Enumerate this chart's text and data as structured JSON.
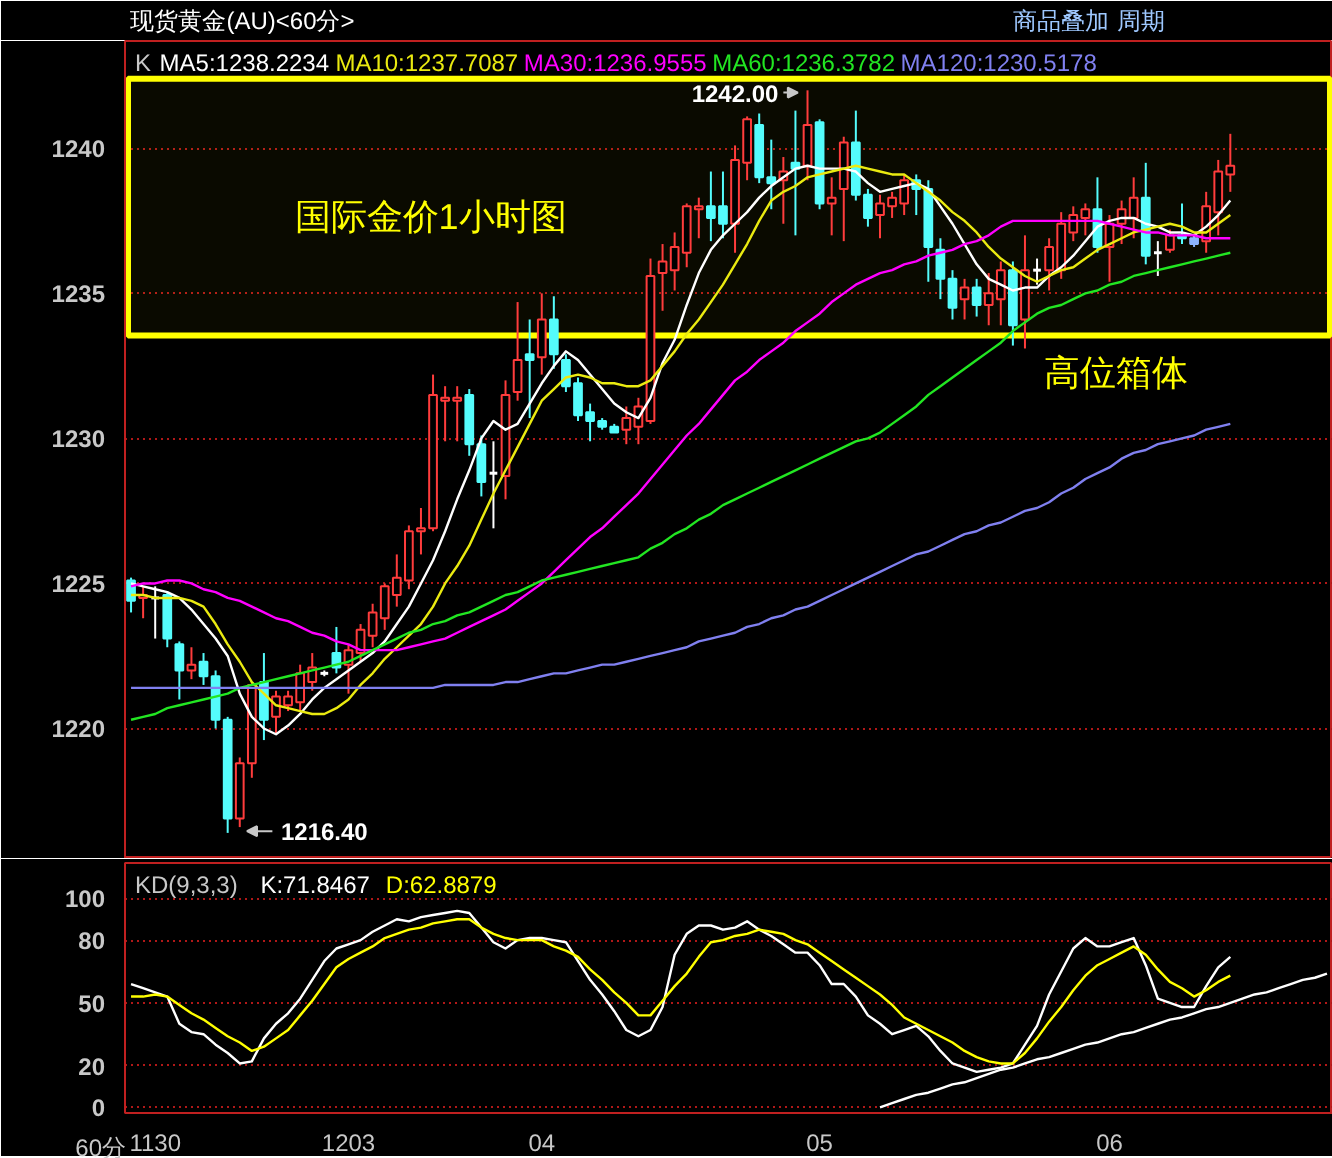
{
  "chart_data": [
    {
      "type": "candlestick",
      "title": "现货黄金(AU)<60分>",
      "legend_title": "K",
      "legend": "top left",
      "grid": "y",
      "tick_labels": "y",
      "ylim": [
        1215.5,
        1243.7
      ],
      "yticks": [
        1220,
        1225,
        1230,
        1235,
        1240
      ],
      "categories": [
        null,
        null,
        "1130",
        null,
        null,
        null,
        null,
        null,
        null,
        null,
        null,
        null,
        null,
        null,
        null,
        null,
        null,
        null,
        "1203",
        null,
        null,
        null,
        null,
        null,
        null,
        null,
        null,
        null,
        null,
        null,
        null,
        null,
        null,
        null,
        "04",
        null,
        null,
        null,
        null,
        null,
        null,
        null,
        null,
        null,
        null,
        null,
        null,
        null,
        null,
        null,
        null,
        null,
        null,
        null,
        null,
        null,
        null,
        "05",
        null,
        null,
        null,
        null,
        null,
        null,
        null,
        null,
        null,
        null,
        null,
        null,
        null,
        null,
        null,
        null,
        null,
        null,
        null,
        null,
        null,
        null,
        null,
        "06",
        null,
        null,
        null,
        null,
        null,
        null,
        null,
        null,
        null,
        null,
        null,
        null,
        null,
        null,
        null,
        null,
        null,
        null
      ],
      "colors": [
        "#54fcfc",
        "#ff3c3c",
        "#ffffff",
        "#54fcfc",
        "#54fcfc",
        "#ff3c3c",
        "#54fcfc",
        "#54fcfc",
        "#54fcfc",
        "#ff3c3c",
        "#ff3c3c",
        "#54fcfc",
        "#ff3c3c",
        "#ff3c3c",
        "#ff3c3c",
        "#ff3c3c",
        "#ffffff",
        "#54fcfc",
        "#ff3c3c",
        "#ff3c3c",
        "#ff3c3c",
        "#ff3c3c",
        "#ff3c3c",
        "#ff3c3c",
        "#ff3c3c",
        "#ff3c3c",
        "#ff3c3c",
        "#ff3c3c",
        "#54fcfc",
        "#54fcfc",
        "#ffffff",
        "#ff3c3c",
        "#ff3c3c",
        "#54fcfc",
        "#ff3c3c",
        "#54fcfc",
        "#54fcfc",
        "#54fcfc",
        "#54fcfc",
        "#54fcfc",
        "#54fcfc",
        "#ff3c3c",
        "#ff3c3c",
        "#ff3c3c",
        "#ff3c3c",
        "#ff3c3c",
        "#ff3c3c",
        "#ff3c3c",
        "#54fcfc",
        "#54fcfc",
        "#ff3c3c",
        "#ff3c3c",
        "#54fcfc",
        "#54fcfc",
        "#ff3c3c",
        "#54fcfc",
        "#ff3c3c",
        "#54fcfc",
        "#ff3c3c",
        "#ff3c3c",
        "#54fcfc",
        "#54fcfc",
        "#ff3c3c",
        "#ff3c3c",
        "#ff3c3c",
        "#54fcfc",
        "#54fcfc",
        "#54fcfc",
        "#54fcfc",
        "#ff3c3c",
        "#54fcfc",
        "#ff3c3c",
        "#ff3c3c",
        "#54fcfc",
        "#ff3c3c",
        "#ffffff",
        "#ff3c3c",
        "#ff3c3c",
        "#ff3c3c",
        "#ff3c3c",
        "#54fcfc",
        "#ff3c3c",
        "#ff3c3c",
        "#ff3c3c",
        "#54fcfc",
        "#ffffff",
        "#ff3c3c",
        "#54fcfc",
        "#8cb4ff",
        "#ff3c3c",
        "#ff3c3c",
        "#ff3c3c",
        null,
        null,
        null,
        null,
        null,
        null,
        null,
        null
      ],
      "ohlc": [
        [
          1225.1,
          1225.2,
          1224.0,
          1224.4
        ],
        [
          1224.5,
          1224.9,
          1223.8,
          1224.6
        ],
        [
          1224.5,
          1224.9,
          1223.1,
          1224.5
        ],
        [
          1224.6,
          1224.7,
          1222.8,
          1223.1
        ],
        [
          1222.9,
          1223.0,
          1221.0,
          1222.0
        ],
        [
          1222.0,
          1222.8,
          1221.7,
          1222.2
        ],
        [
          1222.3,
          1222.6,
          1221.5,
          1221.8
        ],
        [
          1221.8,
          1222.0,
          1220.0,
          1220.3
        ],
        [
          1220.3,
          1220.4,
          1216.4,
          1216.9
        ],
        [
          1216.9,
          1219.0,
          1216.6,
          1218.8
        ],
        [
          1218.8,
          1221.6,
          1218.3,
          1221.5
        ],
        [
          1221.6,
          1222.6,
          1219.6,
          1220.3
        ],
        [
          1220.4,
          1221.3,
          1219.8,
          1221.1
        ],
        [
          1220.8,
          1221.3,
          1220.6,
          1221.1
        ],
        [
          1220.9,
          1222.2,
          1220.6,
          1221.9
        ],
        [
          1221.6,
          1222.6,
          1221.3,
          1222.1
        ],
        [
          1221.9,
          1222.0,
          1221.8,
          1221.9
        ],
        [
          1222.6,
          1223.5,
          1221.9,
          1222.1
        ],
        [
          1222.2,
          1222.9,
          1221.2,
          1222.7
        ],
        [
          1222.6,
          1223.6,
          1222.3,
          1223.4
        ],
        [
          1223.2,
          1224.3,
          1222.8,
          1224.0
        ],
        [
          1223.8,
          1225.0,
          1223.4,
          1224.9
        ],
        [
          1224.6,
          1226.0,
          1224.2,
          1225.2
        ],
        [
          1225.1,
          1227.0,
          1224.8,
          1226.8
        ],
        [
          1226.8,
          1227.6,
          1226.0,
          1226.9
        ],
        [
          1226.9,
          1232.2,
          1226.8,
          1231.5
        ],
        [
          1231.3,
          1231.8,
          1229.9,
          1231.4
        ],
        [
          1231.3,
          1231.8,
          1229.9,
          1231.4
        ],
        [
          1231.5,
          1231.7,
          1229.4,
          1229.8
        ],
        [
          1229.8,
          1230.1,
          1228.0,
          1228.5
        ],
        [
          1228.8,
          1229.9,
          1226.9,
          1228.8
        ],
        [
          1228.7,
          1232.0,
          1227.9,
          1231.5
        ],
        [
          1231.6,
          1234.7,
          1231.3,
          1232.7
        ],
        [
          1232.9,
          1234.1,
          1230.7,
          1232.7
        ],
        [
          1232.8,
          1235.0,
          1232.2,
          1234.1
        ],
        [
          1234.1,
          1234.9,
          1232.4,
          1232.9
        ],
        [
          1232.7,
          1232.9,
          1231.6,
          1231.8
        ],
        [
          1231.9,
          1232.1,
          1230.6,
          1230.8
        ],
        [
          1230.9,
          1231.2,
          1229.9,
          1230.6
        ],
        [
          1230.6,
          1230.7,
          1230.3,
          1230.4
        ],
        [
          1230.4,
          1230.5,
          1230.2,
          1230.2
        ],
        [
          1230.3,
          1231.1,
          1229.8,
          1230.7
        ],
        [
          1230.4,
          1231.4,
          1229.8,
          1231.1
        ],
        [
          1230.6,
          1236.2,
          1230.5,
          1235.6
        ],
        [
          1235.7,
          1236.7,
          1234.4,
          1236.1
        ],
        [
          1235.8,
          1237.1,
          1235.1,
          1236.6
        ],
        [
          1236.4,
          1238.1,
          1235.9,
          1238.0
        ],
        [
          1237.9,
          1238.3,
          1236.9,
          1238.0
        ],
        [
          1238.0,
          1239.2,
          1236.8,
          1237.6
        ],
        [
          1238.0,
          1239.2,
          1236.9,
          1237.4
        ],
        [
          1237.4,
          1240.1,
          1236.4,
          1239.6
        ],
        [
          1239.5,
          1241.1,
          1238.9,
          1241.0
        ],
        [
          1240.8,
          1241.2,
          1238.8,
          1239.0
        ],
        [
          1239.0,
          1240.3,
          1237.9,
          1238.8
        ],
        [
          1238.9,
          1239.7,
          1237.4,
          1239.2
        ],
        [
          1239.5,
          1241.3,
          1237.0,
          1239.3
        ],
        [
          1239.4,
          1242.0,
          1238.9,
          1240.8
        ],
        [
          1240.9,
          1241.0,
          1237.9,
          1238.1
        ],
        [
          1238.1,
          1239.0,
          1237.0,
          1238.3
        ],
        [
          1238.6,
          1240.4,
          1236.8,
          1240.2
        ],
        [
          1240.2,
          1241.3,
          1238.2,
          1238.4
        ],
        [
          1238.4,
          1238.6,
          1237.3,
          1237.6
        ],
        [
          1237.7,
          1238.4,
          1236.9,
          1238.1
        ],
        [
          1238.0,
          1238.5,
          1237.6,
          1238.3
        ],
        [
          1238.1,
          1239.1,
          1237.7,
          1238.9
        ],
        [
          1238.9,
          1239.1,
          1237.7,
          1238.6
        ],
        [
          1238.6,
          1238.9,
          1235.4,
          1236.6
        ],
        [
          1236.5,
          1236.9,
          1234.8,
          1235.5
        ],
        [
          1235.5,
          1235.8,
          1234.1,
          1234.5
        ],
        [
          1234.8,
          1235.5,
          1234.1,
          1235.2
        ],
        [
          1235.2,
          1235.5,
          1234.2,
          1234.6
        ],
        [
          1234.6,
          1235.7,
          1233.9,
          1235.0
        ],
        [
          1234.8,
          1236.1,
          1233.9,
          1235.8
        ],
        [
          1235.8,
          1236.1,
          1233.2,
          1233.9
        ],
        [
          1234.1,
          1237.0,
          1233.1,
          1235.8
        ],
        [
          1235.8,
          1236.2,
          1235.3,
          1235.8
        ],
        [
          1235.8,
          1236.9,
          1235.1,
          1236.6
        ],
        [
          1235.8,
          1237.8,
          1235.5,
          1237.4
        ],
        [
          1237.1,
          1238.0,
          1236.8,
          1237.7
        ],
        [
          1237.6,
          1238.1,
          1237.0,
          1237.9
        ],
        [
          1237.9,
          1239.0,
          1236.4,
          1236.6
        ],
        [
          1236.6,
          1237.7,
          1235.4,
          1237.4
        ],
        [
          1237.4,
          1238.2,
          1236.7,
          1237.9
        ],
        [
          1237.6,
          1239.0,
          1236.9,
          1238.3
        ],
        [
          1238.3,
          1239.5,
          1236.0,
          1236.3
        ],
        [
          1236.4,
          1236.8,
          1235.6,
          1236.4
        ],
        [
          1236.5,
          1237.2,
          1236.4,
          1237.0
        ],
        [
          1237.0,
          1238.1,
          1236.7,
          1236.9
        ],
        [
          1236.9,
          1237.0,
          1236.6,
          1236.7
        ],
        [
          1236.8,
          1238.5,
          1236.4,
          1238.0
        ],
        [
          1237.8,
          1239.6,
          1237.0,
          1239.2
        ],
        [
          1239.1,
          1240.5,
          1238.5,
          1239.4
        ],
        null,
        null,
        null,
        null,
        null,
        null,
        null,
        null
      ],
      "series": [
        {
          "type": "line",
          "name": "MA5:1238.2234",
          "color": "#ffffff",
          "values": [
            1225.0,
            1224.9,
            1224.8,
            1224.7,
            1224.5,
            1224.1,
            1223.6,
            1223.1,
            1222.5,
            1221.2,
            1220.4,
            1220.0,
            1219.8,
            1220.1,
            1220.5,
            1221.0,
            1221.4,
            1221.7,
            1222.0,
            1222.3,
            1222.6,
            1223.0,
            1223.6,
            1224.2,
            1225.0,
            1225.8,
            1226.8,
            1227.9,
            1228.9,
            1230.0,
            1230.6,
            1230.3,
            1230.5,
            1231.2,
            1231.9,
            1232.5,
            1233.0,
            1232.7,
            1232.2,
            1231.7,
            1231.2,
            1230.9,
            1230.7,
            1231.4,
            1232.6,
            1233.4,
            1234.6,
            1235.7,
            1236.5,
            1237.0,
            1237.4,
            1237.8,
            1238.3,
            1238.7,
            1239.0,
            1239.3,
            1239.4,
            1239.3,
            1239.3,
            1239.3,
            1239.2,
            1238.8,
            1238.5,
            1238.6,
            1238.7,
            1238.8,
            1238.6,
            1238.0,
            1237.4,
            1236.7,
            1236.0,
            1235.5,
            1235.3,
            1235.1,
            1235.2,
            1235.2,
            1235.6,
            1235.9,
            1236.3,
            1236.8,
            1237.3,
            1237.5,
            1237.6,
            1237.6,
            1237.4,
            1237.3,
            1237.1,
            1237.1,
            1237.0,
            1237.3,
            1237.7,
            1238.2,
            null,
            null,
            null,
            null,
            null,
            null,
            null,
            null
          ]
        },
        {
          "type": "line",
          "name": "MA10:1237.7087",
          "color": "#eaea10",
          "values": [
            1224.6,
            1224.6,
            1224.5,
            1224.5,
            1224.5,
            1224.4,
            1224.2,
            1223.6,
            1222.9,
            1222.3,
            1221.6,
            1221.2,
            1220.8,
            1220.7,
            1220.6,
            1220.5,
            1220.5,
            1220.7,
            1221.0,
            1221.5,
            1221.9,
            1222.4,
            1222.8,
            1223.2,
            1223.6,
            1224.2,
            1225.0,
            1225.6,
            1226.3,
            1227.2,
            1228.1,
            1228.9,
            1229.7,
            1230.5,
            1231.3,
            1231.7,
            1232.1,
            1232.2,
            1232.1,
            1231.9,
            1231.9,
            1231.8,
            1231.8,
            1232.0,
            1232.5,
            1233.0,
            1233.6,
            1234.1,
            1234.7,
            1235.3,
            1236.0,
            1236.7,
            1237.5,
            1238.2,
            1238.5,
            1238.7,
            1239.0,
            1239.1,
            1239.2,
            1239.3,
            1239.4,
            1239.3,
            1239.2,
            1239.1,
            1239.1,
            1238.8,
            1238.5,
            1238.2,
            1237.8,
            1237.5,
            1237.1,
            1236.6,
            1236.2,
            1235.9,
            1235.6,
            1235.4,
            1235.6,
            1235.8,
            1235.9,
            1236.2,
            1236.5,
            1236.7,
            1236.9,
            1237.1,
            1237.2,
            1237.3,
            1237.4,
            1237.3,
            1237.1,
            1237.1,
            1237.4,
            1237.7,
            null,
            null,
            null,
            null,
            null,
            null,
            null,
            null
          ]
        },
        {
          "type": "line",
          "name": "MA30:1236.9555",
          "color": "#ff00ff",
          "values": [
            1224.9,
            1225.0,
            1225.0,
            1225.1,
            1225.1,
            1225.0,
            1224.8,
            1224.7,
            1224.5,
            1224.4,
            1224.2,
            1224.0,
            1223.8,
            1223.7,
            1223.5,
            1223.3,
            1223.2,
            1223.0,
            1222.9,
            1222.7,
            1222.7,
            1222.7,
            1222.7,
            1222.8,
            1222.9,
            1223.0,
            1223.1,
            1223.3,
            1223.5,
            1223.7,
            1223.9,
            1224.1,
            1224.4,
            1224.7,
            1225.0,
            1225.4,
            1225.8,
            1226.2,
            1226.6,
            1226.9,
            1227.3,
            1227.7,
            1228.1,
            1228.6,
            1229.1,
            1229.6,
            1230.1,
            1230.5,
            1231.0,
            1231.5,
            1232.0,
            1232.3,
            1232.7,
            1233.0,
            1233.3,
            1233.7,
            1234.0,
            1234.3,
            1234.7,
            1235.0,
            1235.3,
            1235.5,
            1235.7,
            1235.8,
            1236.0,
            1236.1,
            1236.3,
            1236.4,
            1236.5,
            1236.7,
            1236.8,
            1237.0,
            1237.3,
            1237.5,
            1237.5,
            1237.5,
            1237.5,
            1237.5,
            1237.5,
            1237.5,
            1237.5,
            1237.4,
            1237.3,
            1237.2,
            1237.1,
            1237.1,
            1237.0,
            1237.0,
            1237.0,
            1236.9,
            1236.9,
            1236.9,
            null,
            null,
            null,
            null,
            null,
            null,
            null,
            null
          ]
        },
        {
          "type": "line",
          "name": "MA60:1236.3782",
          "color": "#22e622",
          "values": [
            1220.3,
            1220.4,
            1220.5,
            1220.7,
            1220.8,
            1220.9,
            1221.0,
            1221.1,
            1221.2,
            1221.4,
            1221.5,
            1221.6,
            1221.7,
            1221.8,
            1221.9,
            1222.0,
            1222.1,
            1222.2,
            1222.3,
            1222.5,
            1222.7,
            1222.9,
            1223.1,
            1223.3,
            1223.4,
            1223.6,
            1223.7,
            1223.9,
            1224.0,
            1224.2,
            1224.4,
            1224.6,
            1224.7,
            1224.9,
            1225.1,
            1225.2,
            1225.3,
            1225.4,
            1225.5,
            1225.6,
            1225.7,
            1225.8,
            1225.9,
            1226.2,
            1226.4,
            1226.7,
            1226.9,
            1227.2,
            1227.4,
            1227.7,
            1227.9,
            1228.1,
            1228.3,
            1228.5,
            1228.7,
            1228.9,
            1229.1,
            1229.3,
            1229.5,
            1229.7,
            1229.9,
            1230.0,
            1230.2,
            1230.5,
            1230.8,
            1231.1,
            1231.5,
            1231.8,
            1232.1,
            1232.4,
            1232.7,
            1233.0,
            1233.3,
            1233.7,
            1234.0,
            1234.3,
            1234.5,
            1234.6,
            1234.8,
            1235.0,
            1235.1,
            1235.3,
            1235.4,
            1235.6,
            1235.7,
            1235.8,
            1235.9,
            1236.0,
            1236.1,
            1236.2,
            1236.3,
            1236.4,
            null,
            null,
            null,
            null,
            null,
            null,
            null,
            null
          ]
        },
        {
          "type": "line",
          "name": "MA120:1230.5178",
          "color": "#8080f0",
          "values": [
            1221.4,
            1221.4,
            1221.4,
            1221.4,
            1221.4,
            1221.4,
            1221.4,
            1221.4,
            1221.4,
            1221.4,
            1221.4,
            1221.4,
            1221.4,
            1221.4,
            1221.4,
            1221.4,
            1221.4,
            1221.4,
            1221.4,
            1221.4,
            1221.4,
            1221.4,
            1221.4,
            1221.4,
            1221.4,
            1221.4,
            1221.5,
            1221.5,
            1221.5,
            1221.5,
            1221.5,
            1221.6,
            1221.6,
            1221.7,
            1221.8,
            1221.9,
            1221.9,
            1222.0,
            1222.1,
            1222.2,
            1222.2,
            1222.3,
            1222.4,
            1222.5,
            1222.6,
            1222.7,
            1222.8,
            1223.0,
            1223.1,
            1223.2,
            1223.3,
            1223.5,
            1223.6,
            1223.8,
            1223.9,
            1224.1,
            1224.2,
            1224.4,
            1224.6,
            1224.8,
            1225.0,
            1225.2,
            1225.4,
            1225.6,
            1225.8,
            1226.0,
            1226.1,
            1226.3,
            1226.5,
            1226.7,
            1226.8,
            1227.0,
            1227.1,
            1227.3,
            1227.5,
            1227.6,
            1227.8,
            1228.1,
            1228.3,
            1228.6,
            1228.8,
            1229.0,
            1229.3,
            1229.5,
            1229.6,
            1229.8,
            1229.9,
            1230.0,
            1230.1,
            1230.3,
            1230.4,
            1230.5,
            null,
            null,
            null,
            null,
            null,
            null,
            null,
            null
          ]
        }
      ],
      "bands": [
        {
          "axis": "y",
          "from": 1233.55,
          "to": 1242.4,
          "label": "高位箱体",
          "color": "#ffff00"
        }
      ],
      "annotations": [
        "国际金价1小时图",
        "商品叠加",
        "周期",
        "1242.00",
        "1216.40"
      ]
    },
    {
      "type": "line",
      "legend_title": "KD(9,3,3)",
      "legend": "top left",
      "grid": "y",
      "xlabel": "60分",
      "ylim": [
        -2.7,
        116.9
      ],
      "yticks": [
        0,
        20,
        50,
        80,
        100
      ],
      "categories": [
        null,
        null,
        "1130",
        null,
        null,
        null,
        null,
        null,
        null,
        null,
        null,
        null,
        null,
        null,
        null,
        null,
        null,
        null,
        "1203",
        null,
        null,
        null,
        null,
        null,
        null,
        null,
        null,
        null,
        null,
        null,
        null,
        null,
        null,
        null,
        "04",
        null,
        null,
        null,
        null,
        null,
        null,
        null,
        null,
        null,
        null,
        null,
        null,
        null,
        null,
        null,
        null,
        null,
        null,
        null,
        null,
        null,
        null,
        "05",
        null,
        null,
        null,
        null,
        null,
        null,
        null,
        null,
        null,
        null,
        null,
        null,
        null,
        null,
        null,
        null,
        null,
        null,
        null,
        null,
        null,
        null,
        null,
        "06",
        null,
        null,
        null,
        null,
        null,
        null,
        null,
        null,
        null,
        null,
        null,
        null,
        null,
        null,
        null,
        null,
        null,
        null
      ],
      "series": [
        {
          "name": "K:71.8467",
          "color": "#ffffff",
          "values": [
            59,
            57,
            55,
            53,
            40,
            36,
            35,
            30,
            26,
            21,
            22,
            33,
            40,
            45,
            52,
            61,
            70,
            76,
            78,
            80,
            84,
            87,
            90,
            89,
            91,
            92,
            93,
            94,
            93,
            86,
            79,
            76,
            80,
            81,
            81,
            80,
            79,
            70,
            61,
            54,
            46,
            37,
            34,
            37,
            48,
            73,
            83,
            87,
            87,
            85,
            86,
            89,
            85,
            82,
            78,
            74,
            74,
            68,
            59,
            59,
            53,
            44,
            40,
            35,
            37,
            39,
            34,
            27,
            21,
            19,
            17,
            18,
            19,
            21,
            30,
            39,
            54,
            65,
            76,
            81,
            77,
            77,
            79,
            81,
            68,
            52,
            50,
            48,
            48,
            58,
            67,
            72,
            null,
            null,
            null,
            null,
            null,
            null,
            null,
            null
          ]
        },
        {
          "name": "D:62.8879",
          "color": "#ffff00",
          "values": [
            53,
            53,
            54,
            53,
            49,
            45,
            42,
            38,
            34,
            31,
            27,
            29,
            33,
            37,
            44,
            51,
            59,
            67,
            71,
            74,
            77,
            81,
            83,
            85,
            86,
            88,
            89,
            90,
            90,
            86,
            83,
            81,
            80,
            80,
            80,
            77,
            75,
            72,
            66,
            61,
            55,
            50,
            44,
            44,
            51,
            58,
            64,
            72,
            79,
            80,
            82,
            83,
            85,
            84,
            83,
            80,
            78,
            74,
            70,
            66,
            62,
            58,
            54,
            49,
            43,
            40,
            37,
            34,
            31,
            27,
            24,
            22,
            21,
            21,
            26,
            33,
            41,
            48,
            56,
            63,
            68,
            71,
            74,
            77,
            73,
            66,
            60,
            57,
            53,
            56,
            60,
            63,
            null,
            null,
            null,
            null,
            null,
            null,
            null,
            null
          ]
        },
        {
          "color": "#ffffff",
          "values": [
            null,
            null,
            null,
            null,
            null,
            null,
            null,
            null,
            null,
            null,
            null,
            null,
            null,
            null,
            null,
            null,
            null,
            null,
            null,
            null,
            null,
            null,
            null,
            null,
            null,
            null,
            null,
            null,
            null,
            null,
            null,
            null,
            null,
            null,
            null,
            null,
            null,
            null,
            null,
            null,
            null,
            null,
            null,
            null,
            null,
            null,
            null,
            null,
            null,
            null,
            null,
            null,
            null,
            null,
            null,
            null,
            null,
            null,
            null,
            null,
            null,
            null,
            0,
            2,
            4,
            6,
            7,
            9,
            11,
            12,
            14,
            16,
            18,
            19,
            21,
            23,
            24,
            26,
            28,
            30,
            31,
            33,
            35,
            36,
            38,
            40,
            42,
            43,
            45,
            47,
            48,
            50,
            52,
            54,
            55,
            57,
            59,
            61,
            62,
            64
          ]
        }
      ]
    }
  ]
}
